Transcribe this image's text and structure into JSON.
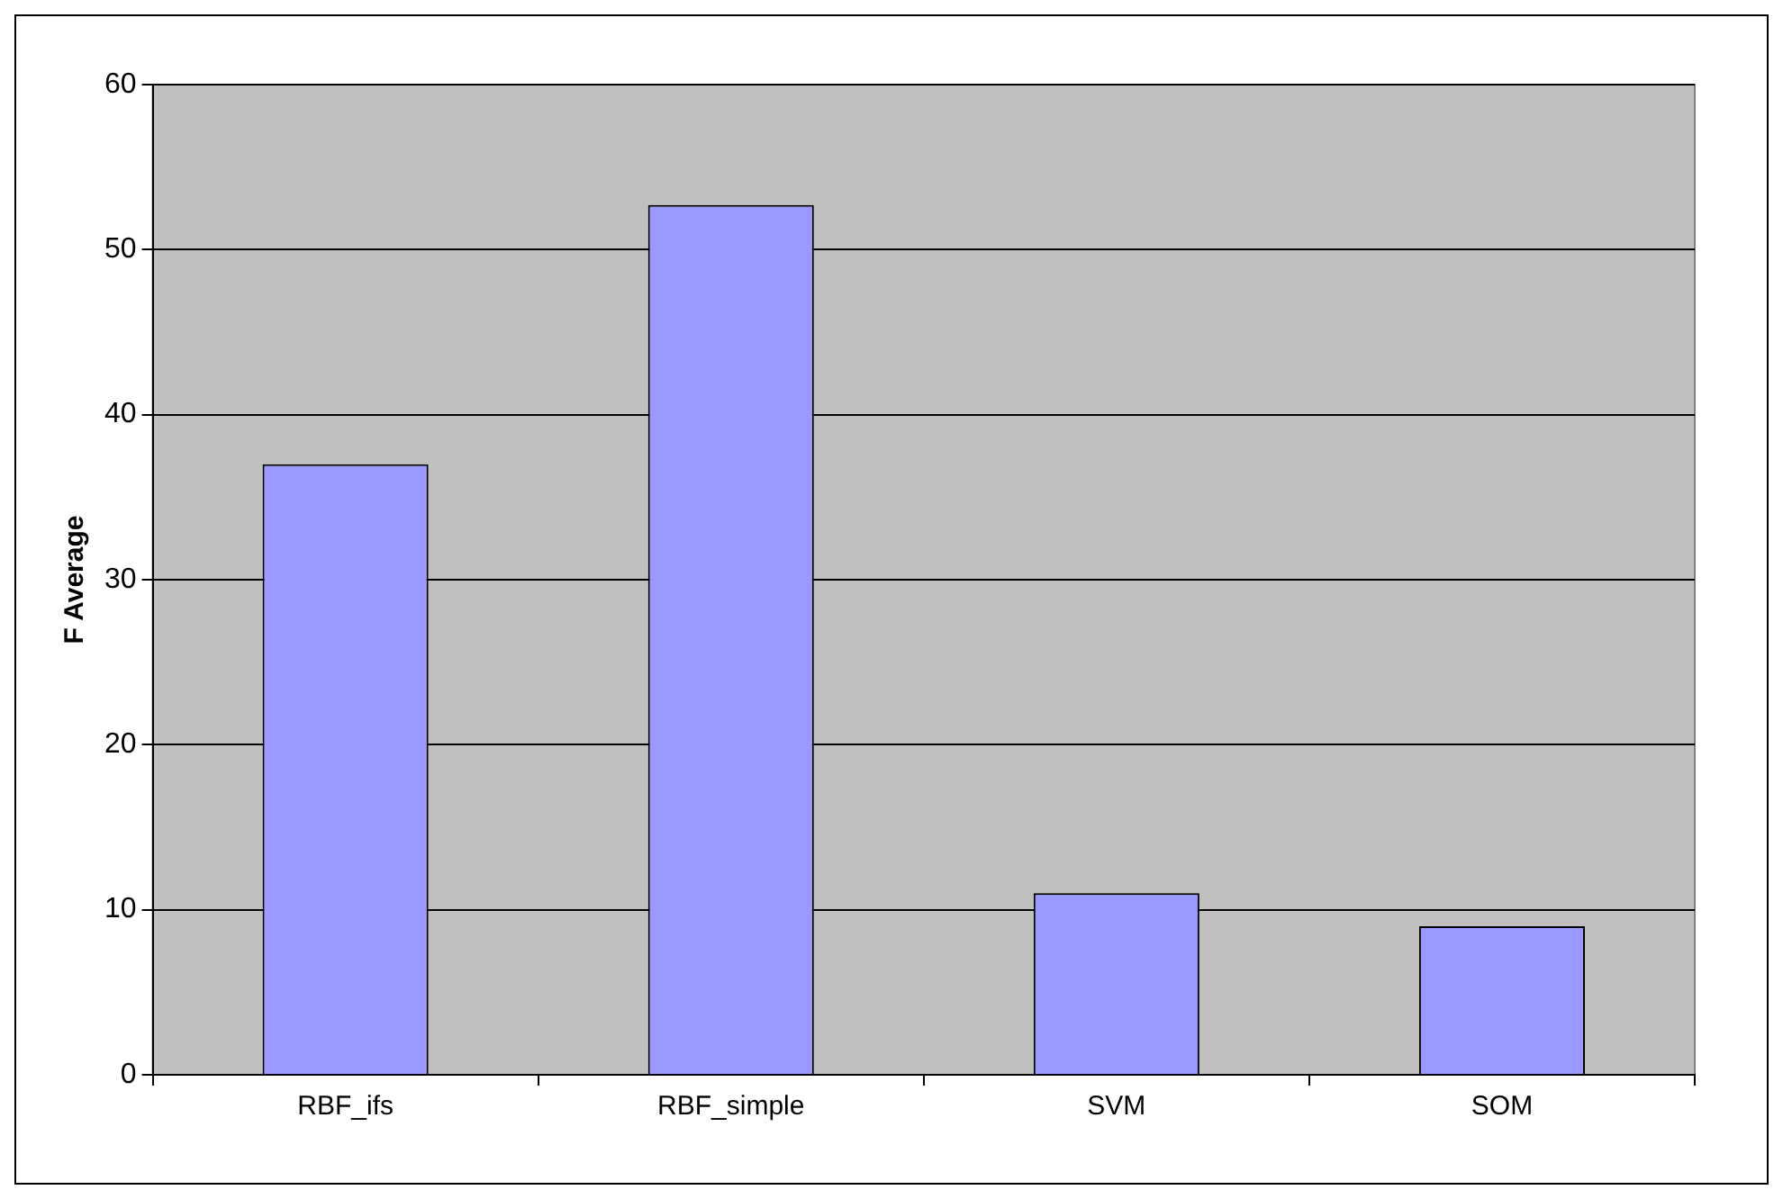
{
  "chart_data": {
    "type": "bar",
    "ylabel": "F Average",
    "categories": [
      "RBF_ifs",
      "RBF_simple",
      "SVM",
      "SOM"
    ],
    "values": [
      37,
      52.7,
      11,
      9
    ],
    "color": "#9999ff",
    "ylim": [
      0,
      60
    ],
    "yticks": [
      0,
      10,
      20,
      30,
      40,
      50,
      60
    ],
    "grid": "y",
    "legend": false
  }
}
